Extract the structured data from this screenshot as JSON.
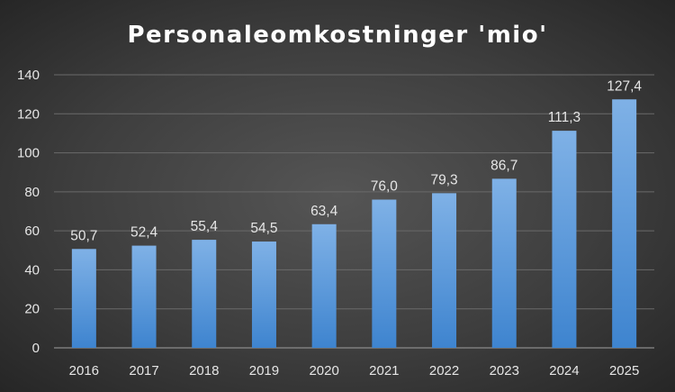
{
  "chart_data": {
    "type": "bar",
    "title": "Personaleomkostninger 'mio'",
    "xlabel": "",
    "ylabel": "",
    "categories": [
      "2016",
      "2017",
      "2018",
      "2019",
      "2020",
      "2021",
      "2022",
      "2023",
      "2024",
      "2025"
    ],
    "values": [
      50.7,
      52.4,
      55.4,
      54.5,
      63.4,
      76.0,
      79.3,
      86.7,
      111.3,
      127.4
    ],
    "data_labels": [
      "50,7",
      "52,4",
      "55,4",
      "54,5",
      "63,4",
      "76,0",
      "79,3",
      "86,7",
      "111,3",
      "127,4"
    ],
    "ylim": [
      0,
      140
    ],
    "yticks": [
      "0",
      "20",
      "40",
      "60",
      "80",
      "100",
      "120",
      "140"
    ],
    "grid": true,
    "legend": "none",
    "colors": {
      "bar_top": "#7fb1e6",
      "bar_bottom": "#3e84cf",
      "background": "#3e3e3e"
    }
  }
}
